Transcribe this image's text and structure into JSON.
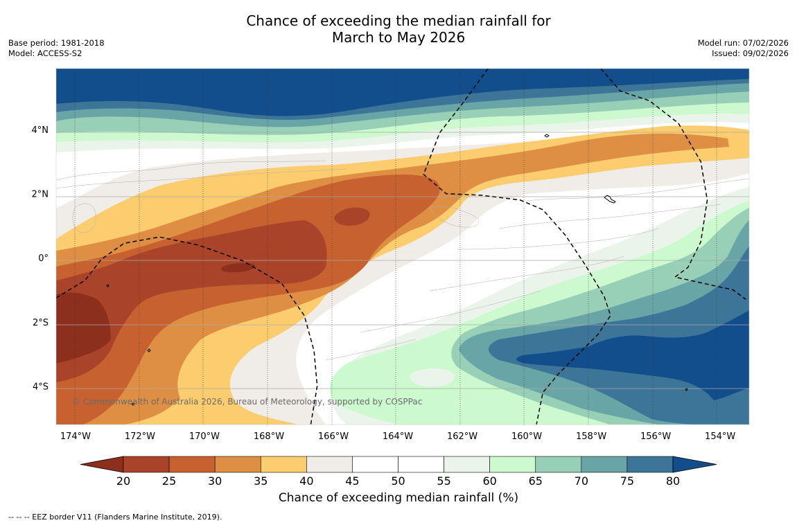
{
  "title": {
    "line1": "Chance of exceeding the median rainfall for",
    "line2": "March to May 2026"
  },
  "meta_left": {
    "base_period": "Base period: 1981-2018",
    "model": "Model: ACCESS-S2"
  },
  "meta_right": {
    "model_run": "Model run: 07/02/2026",
    "issued": "Issued: 09/02/2026"
  },
  "map": {
    "lon_range": [
      -174.6,
      -153.1
    ],
    "lat_range": [
      -5.2,
      5.9
    ],
    "lat_ticks": [
      {
        "value": 4,
        "label": "4°N"
      },
      {
        "value": 2,
        "label": "2°N"
      },
      {
        "value": 0,
        "label": "0°"
      },
      {
        "value": -2,
        "label": "2°S"
      },
      {
        "value": -4,
        "label": "4°S"
      }
    ],
    "lon_ticks": [
      {
        "value": -174,
        "label": "174°W"
      },
      {
        "value": -172,
        "label": "172°W"
      },
      {
        "value": -170,
        "label": "170°W"
      },
      {
        "value": -168,
        "label": "168°W"
      },
      {
        "value": -166,
        "label": "166°W"
      },
      {
        "value": -164,
        "label": "164°W"
      },
      {
        "value": -162,
        "label": "162°W"
      },
      {
        "value": -160,
        "label": "160°W"
      },
      {
        "value": -158,
        "label": "158°W"
      },
      {
        "value": -156,
        "label": "156°W"
      },
      {
        "value": -154,
        "label": "154°W"
      }
    ],
    "copyright": "© Commonwealth of Australia 2026, Bureau of Meteorology, supported by COSPPac",
    "eez_border": [
      [
        -174.6,
        -1.25
      ],
      [
        -173.7,
        -0.7
      ],
      [
        -173.2,
        -0.05
      ],
      [
        -172.5,
        0.45
      ],
      [
        -171.4,
        0.65
      ],
      [
        -170.2,
        0.4
      ],
      [
        -168.8,
        -0.1
      ],
      [
        -167.6,
        -0.8
      ],
      [
        -166.9,
        -1.8
      ],
      [
        -166.6,
        -2.9
      ],
      [
        -166.5,
        -4.0
      ],
      [
        -166.7,
        -5.2
      ]
    ],
    "eez_border_2": [
      [
        -161.2,
        5.9
      ],
      [
        -162.0,
        4.8
      ],
      [
        -162.7,
        3.9
      ],
      [
        -163.2,
        2.6
      ],
      [
        -162.5,
        2.0
      ],
      [
        -161.4,
        1.95
      ],
      [
        -160.2,
        1.8
      ],
      [
        -159.5,
        1.5
      ],
      [
        -158.8,
        0.7
      ],
      [
        -158.2,
        -0.2
      ],
      [
        -157.6,
        -1.2
      ],
      [
        -157.4,
        -1.8
      ],
      [
        -157.8,
        -2.4
      ],
      [
        -158.5,
        -3.1
      ],
      [
        -159.0,
        -3.6
      ],
      [
        -159.5,
        -4.2
      ],
      [
        -159.7,
        -5.2
      ]
    ],
    "eez_border_3": [
      [
        -157.7,
        5.9
      ],
      [
        -157.1,
        5.2
      ],
      [
        -156.2,
        4.9
      ],
      [
        -155.3,
        4.2
      ],
      [
        -154.6,
        3.0
      ],
      [
        -154.4,
        1.8
      ],
      [
        -154.6,
        0.5
      ],
      [
        -155.0,
        -0.3
      ],
      [
        -155.4,
        -0.6
      ],
      [
        -154.5,
        -0.8
      ],
      [
        -153.6,
        -1.0
      ],
      [
        -153.2,
        -1.3
      ]
    ]
  },
  "colorbar": {
    "title": "Chance of exceeding median rainfall (%)",
    "levels": [
      "20",
      "25",
      "30",
      "35",
      "40",
      "45",
      "50",
      "55",
      "60",
      "65",
      "70",
      "75",
      "80"
    ],
    "colors": [
      "#8d2f1d",
      "#a9442a",
      "#c7612f",
      "#df8f44",
      "#fccd6e",
      "#f0ece8",
      "#ffffff",
      "#ffffff",
      "#eaf4ea",
      "#ccf9cd",
      "#98cfb7",
      "#69a5a6",
      "#3d7599",
      "#134e8c"
    ]
  },
  "footer": "--  --  -- EEZ border V11 (Flanders Marine Institute, 2019)."
}
